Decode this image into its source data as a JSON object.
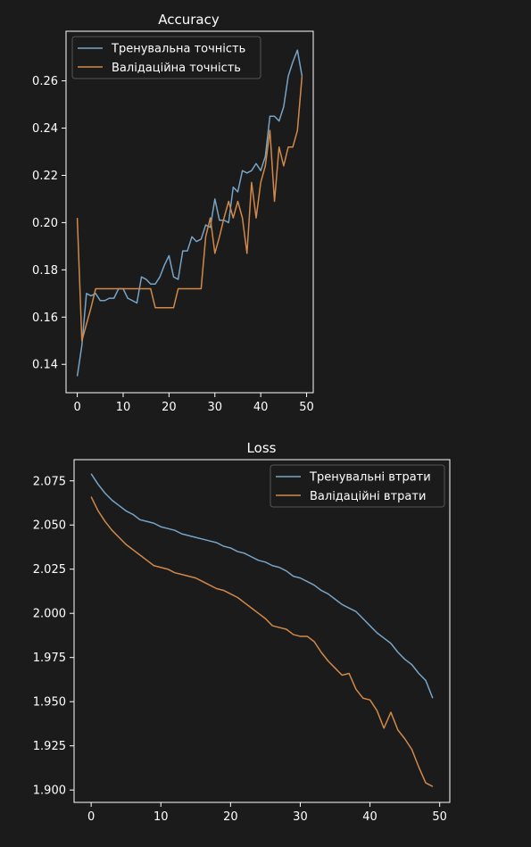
{
  "chart_data": [
    {
      "type": "line",
      "title": "Accuracy",
      "xlabel": "",
      "ylabel": "",
      "xlim": [
        -2.45,
        51.45
      ],
      "ylim": [
        0.128,
        0.281
      ],
      "xticks": [
        0,
        10,
        20,
        30,
        40,
        50
      ],
      "yticks": [
        0.14,
        0.16,
        0.18,
        0.2,
        0.22,
        0.24,
        0.26
      ],
      "xtick_labels": [
        "0",
        "10",
        "20",
        "30",
        "40",
        "50"
      ],
      "ytick_labels": [
        "0.14",
        "0.16",
        "0.18",
        "0.20",
        "0.22",
        "0.24",
        "0.26"
      ],
      "grid": false,
      "legend_position": "top-left",
      "x": [
        0,
        1,
        2,
        3,
        4,
        5,
        6,
        7,
        8,
        9,
        10,
        11,
        12,
        13,
        14,
        15,
        16,
        17,
        18,
        19,
        20,
        21,
        22,
        23,
        24,
        25,
        26,
        27,
        28,
        29,
        30,
        31,
        32,
        33,
        34,
        35,
        36,
        37,
        38,
        39,
        40,
        41,
        42,
        43,
        44,
        45,
        46,
        47,
        48,
        49
      ],
      "series": [
        {
          "name": "Тренувальна точність",
          "color": "#77a4c6",
          "values": [
            0.135,
            0.148,
            0.17,
            0.169,
            0.17,
            0.167,
            0.167,
            0.168,
            0.168,
            0.172,
            0.172,
            0.168,
            0.167,
            0.166,
            0.177,
            0.176,
            0.174,
            0.174,
            0.177,
            0.182,
            0.186,
            0.177,
            0.176,
            0.188,
            0.188,
            0.194,
            0.192,
            0.193,
            0.199,
            0.198,
            0.21,
            0.201,
            0.201,
            0.2,
            0.215,
            0.213,
            0.222,
            0.221,
            0.222,
            0.225,
            0.222,
            0.228,
            0.245,
            0.245,
            0.243,
            0.249,
            0.262,
            0.268,
            0.273,
            0.262
          ]
        },
        {
          "name": "Валідаційна точність",
          "color": "#d0894a",
          "values": [
            0.202,
            0.15,
            0.157,
            0.164,
            0.172,
            0.172,
            0.172,
            0.172,
            0.172,
            0.172,
            0.172,
            0.172,
            0.172,
            0.172,
            0.172,
            0.172,
            0.172,
            0.164,
            0.164,
            0.164,
            0.164,
            0.164,
            0.172,
            0.172,
            0.172,
            0.172,
            0.172,
            0.172,
            0.194,
            0.202,
            0.187,
            0.194,
            0.202,
            0.209,
            0.202,
            0.209,
            0.202,
            0.187,
            0.217,
            0.202,
            0.217,
            0.224,
            0.239,
            0.209,
            0.232,
            0.224,
            0.232,
            0.232,
            0.239,
            0.262
          ]
        }
      ]
    },
    {
      "type": "line",
      "title": "Loss",
      "xlabel": "",
      "ylabel": "",
      "xlim": [
        -2.45,
        51.45
      ],
      "ylim": [
        1.893,
        2.087
      ],
      "xticks": [
        0,
        10,
        20,
        30,
        40,
        50
      ],
      "yticks": [
        1.9,
        1.925,
        1.95,
        1.975,
        2.0,
        2.025,
        2.05,
        2.075
      ],
      "xtick_labels": [
        "0",
        "10",
        "20",
        "30",
        "40",
        "50"
      ],
      "ytick_labels": [
        "1.900",
        "1.925",
        "1.950",
        "1.975",
        "2.000",
        "2.025",
        "2.050",
        "2.075"
      ],
      "grid": false,
      "legend_position": "top-right",
      "x": [
        0,
        1,
        2,
        3,
        4,
        5,
        6,
        7,
        8,
        9,
        10,
        11,
        12,
        13,
        14,
        15,
        16,
        17,
        18,
        19,
        20,
        21,
        22,
        23,
        24,
        25,
        26,
        27,
        28,
        29,
        30,
        31,
        32,
        33,
        34,
        35,
        36,
        37,
        38,
        39,
        40,
        41,
        42,
        43,
        44,
        45,
        46,
        47,
        48,
        49
      ],
      "series": [
        {
          "name": "Тренувальні втрати",
          "color": "#77a4c6",
          "values": [
            2.079,
            2.073,
            2.068,
            2.064,
            2.061,
            2.058,
            2.056,
            2.053,
            2.052,
            2.051,
            2.049,
            2.048,
            2.047,
            2.045,
            2.044,
            2.043,
            2.042,
            2.041,
            2.04,
            2.038,
            2.037,
            2.035,
            2.034,
            2.032,
            2.03,
            2.029,
            2.027,
            2.026,
            2.024,
            2.021,
            2.02,
            2.018,
            2.016,
            2.013,
            2.011,
            2.008,
            2.005,
            2.003,
            2.001,
            1.997,
            1.993,
            1.989,
            1.986,
            1.983,
            1.978,
            1.974,
            1.971,
            1.966,
            1.962,
            1.952
          ]
        },
        {
          "name": "Валідаційні втрати",
          "color": "#d0894a",
          "values": [
            2.066,
            2.058,
            2.052,
            2.047,
            2.043,
            2.039,
            2.036,
            2.033,
            2.03,
            2.027,
            2.026,
            2.025,
            2.023,
            2.022,
            2.021,
            2.02,
            2.018,
            2.016,
            2.014,
            2.013,
            2.011,
            2.009,
            2.006,
            2.003,
            2.0,
            1.997,
            1.993,
            1.992,
            1.991,
            1.988,
            1.987,
            1.987,
            1.984,
            1.978,
            1.973,
            1.969,
            1.965,
            1.966,
            1.957,
            1.952,
            1.951,
            1.945,
            1.935,
            1.944,
            1.934,
            1.929,
            1.923,
            1.913,
            1.904,
            1.902
          ]
        }
      ]
    }
  ]
}
